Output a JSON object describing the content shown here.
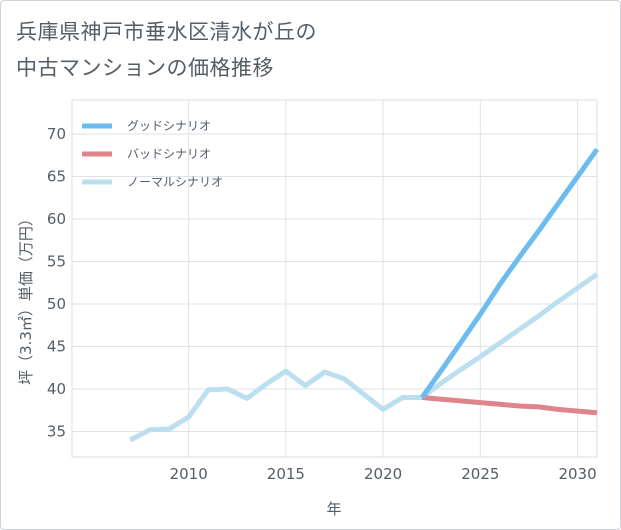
{
  "chart_data": {
    "type": "line",
    "title_line1": "兵庫県神戸市垂水区清水が丘の",
    "title_line2": "中古マンションの価格推移",
    "xlabel": "年",
    "ylabel": "坪（3.3㎡）単価（万円）",
    "xlim": [
      2004,
      2031
    ],
    "ylim": [
      32,
      74
    ],
    "x_ticks": [
      2010,
      2015,
      2020,
      2025,
      2030
    ],
    "y_ticks": [
      35,
      40,
      45,
      50,
      55,
      60,
      65,
      70
    ],
    "grid": true,
    "legend_position": "top-left",
    "series": [
      {
        "name": "グッドシナリオ",
        "color": "#6cbcef",
        "x": [
          2022,
          2023,
          2024,
          2025,
          2026,
          2027,
          2028,
          2029,
          2030,
          2031
        ],
        "values": [
          39.0,
          42.2,
          45.5,
          48.8,
          52.3,
          55.5,
          58.6,
          61.8,
          65.0,
          68.2
        ]
      },
      {
        "name": "バッドシナリオ",
        "color": "#e0848c",
        "x": [
          2022,
          2023,
          2024,
          2025,
          2026,
          2027,
          2028,
          2029,
          2030,
          2031
        ],
        "values": [
          39.0,
          38.8,
          38.6,
          38.4,
          38.2,
          38.0,
          37.9,
          37.6,
          37.4,
          37.2
        ]
      },
      {
        "name": "ノーマルシナリオ",
        "color": "#bcdff0",
        "x": [
          2007,
          2008,
          2009,
          2010,
          2011,
          2012,
          2013,
          2014,
          2015,
          2016,
          2017,
          2018,
          2019,
          2020,
          2021,
          2022,
          2023,
          2024,
          2025,
          2026,
          2027,
          2028,
          2029,
          2030,
          2031
        ],
        "values": [
          34.0,
          35.2,
          35.3,
          36.7,
          39.9,
          40.0,
          38.9,
          40.6,
          42.1,
          40.4,
          42.0,
          41.2,
          39.4,
          37.6,
          39.0,
          39.0,
          40.7,
          42.3,
          43.8,
          45.4,
          47.0,
          48.6,
          50.3,
          51.9,
          53.5
        ]
      }
    ]
  }
}
